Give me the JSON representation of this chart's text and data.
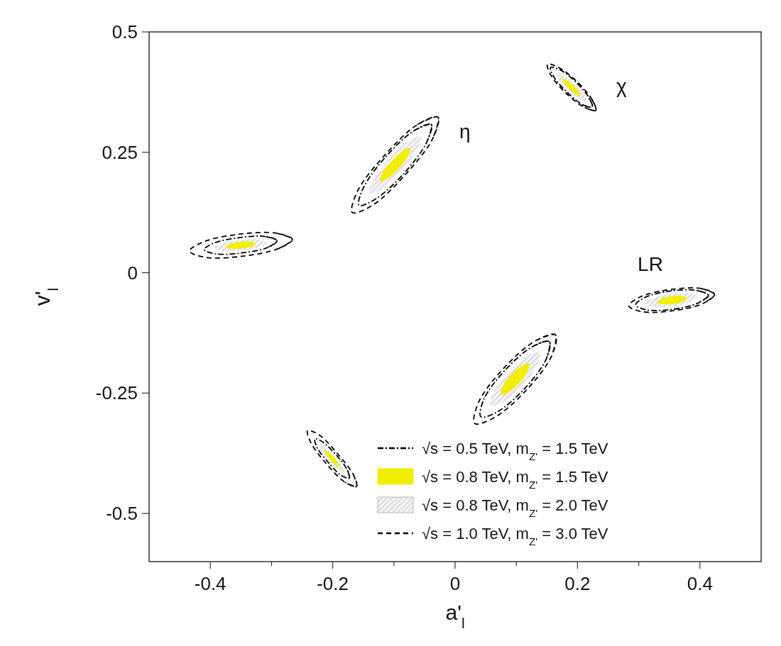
{
  "chart_data": {
    "type": "line",
    "xlabel": "a'$_{l}$",
    "ylabel": "v'$_{l}$",
    "xlim": [
      -0.5,
      0.5
    ],
    "xticks": [
      -0.4,
      {
        "value": -0.3,
        "label": null
      },
      -0.2,
      {
        "value": -0.1,
        "label": null
      },
      0,
      {
        "value": 0.1,
        "label": null
      },
      0.2,
      {
        "value": 0.3,
        "label": null
      },
      0.4
    ],
    "ylim": [
      -0.6,
      0.5
    ],
    "yticks": [
      -0.5,
      -0.25,
      0,
      0.25,
      0.5
    ],
    "grid": false,
    "legend": "bottom right",
    "marker": "none",
    "annotations": [
      "χ",
      "η",
      "LR"
    ],
    "series": [
      {
        "name": "√s = 0.5 TeV, m$_{Z'}$ = 1.5 TeV",
        "type": "line",
        "line_style": "dashdot",
        "color": "#000000",
        "x": [
          0.224,
          0.208,
          0.183,
          0.161,
          0.156,
          0.172,
          0.198,
          0.219,
          null,
          -0.039,
          -0.046,
          -0.083,
          -0.13,
          -0.157,
          -0.15,
          -0.113,
          -0.067,
          null,
          -0.291,
          -0.307,
          -0.349,
          -0.391,
          -0.41,
          -0.393,
          -0.351,
          -0.309,
          null,
          0.414,
          0.397,
          0.356,
          0.313,
          0.295,
          0.311,
          0.352,
          0.395,
          null,
          0.154,
          0.149,
          0.114,
          0.069,
          0.042,
          0.047,
          0.082,
          0.127,
          null,
          -0.173,
          -0.186,
          -0.208,
          -0.226,
          -0.229,
          -0.216,
          -0.194,
          -0.176
        ],
        "values": [
          0.344,
          0.349,
          0.375,
          0.407,
          0.426,
          0.421,
          0.395,
          0.363,
          null,
          0.308,
          0.272,
          0.207,
          0.153,
          0.14,
          0.176,
          0.241,
          0.295,
          null,
          0.066,
          0.052,
          0.041,
          0.039,
          0.048,
          0.062,
          0.073,
          0.075,
          null,
          -0.047,
          -0.063,
          -0.076,
          -0.077,
          -0.067,
          -0.051,
          -0.038,
          -0.037,
          null,
          -0.143,
          -0.179,
          -0.24,
          -0.289,
          -0.299,
          -0.263,
          -0.202,
          -0.153,
          null,
          -0.427,
          -0.421,
          -0.393,
          -0.362,
          -0.345,
          -0.352,
          -0.379,
          -0.41
        ]
      },
      {
        "name": "√s = 0.8 TeV, m$_{Z'}$ = 1.5 TeV",
        "type": "area",
        "color": "#f2ee00",
        "x": [
          0.204,
          0.198,
          0.187,
          0.178,
          0.176,
          0.182,
          0.193,
          0.202,
          null,
          -0.074,
          -0.076,
          -0.092,
          -0.111,
          -0.122,
          -0.12,
          -0.104,
          -0.085,
          null,
          -0.326,
          -0.332,
          -0.349,
          -0.367,
          -0.375,
          -0.368,
          -0.351,
          -0.333,
          null,
          0.379,
          0.372,
          0.355,
          0.337,
          0.33,
          0.336,
          0.353,
          0.371,
          null,
          0.121,
          0.119,
          0.105,
          0.086,
          0.075,
          0.077,
          0.091,
          0.11,
          null,
          -0.189,
          -0.195,
          -0.204,
          -0.211,
          -0.213,
          -0.207,
          -0.198,
          -0.191
        ],
        "values": [
          0.368,
          0.37,
          0.381,
          0.394,
          0.402,
          0.4,
          0.389,
          0.376,
          null,
          0.259,
          0.244,
          0.217,
          0.195,
          0.189,
          0.204,
          0.231,
          0.253,
          null,
          0.061,
          0.055,
          0.05,
          0.05,
          0.053,
          0.059,
          0.064,
          0.064,
          null,
          -0.053,
          -0.06,
          -0.065,
          -0.065,
          -0.061,
          -0.055,
          -0.049,
          -0.049,
          null,
          -0.189,
          -0.204,
          -0.229,
          -0.249,
          -0.253,
          -0.238,
          -0.213,
          -0.193,
          null,
          -0.403,
          -0.4,
          -0.389,
          -0.376,
          -0.369,
          -0.372,
          -0.383,
          -0.396
        ]
      },
      {
        "name": "√s = 0.8 TeV, m$_{Z'}$ = 2.0 TeV",
        "type": "area",
        "color": "#b8b8b8",
        "x": [
          0.214,
          0.203,
          0.185,
          0.17,
          0.166,
          0.177,
          0.195,
          0.211,
          null,
          -0.056,
          -0.061,
          -0.088,
          -0.12,
          -0.14,
          -0.135,
          -0.108,
          -0.076,
          null,
          -0.308,
          -0.32,
          -0.349,
          -0.379,
          -0.392,
          -0.38,
          -0.351,
          -0.321,
          null,
          0.396,
          0.385,
          0.355,
          0.325,
          0.312,
          0.323,
          0.353,
          0.383,
          null,
          0.138,
          0.134,
          0.109,
          0.078,
          0.058,
          0.062,
          0.087,
          0.118,
          null,
          -0.181,
          -0.19,
          -0.206,
          -0.218,
          -0.221,
          -0.212,
          -0.196,
          -0.184
        ],
        "values": [
          0.356,
          0.36,
          0.378,
          0.4,
          0.414,
          0.41,
          0.392,
          0.37,
          null,
          0.283,
          0.258,
          0.212,
          0.174,
          0.165,
          0.19,
          0.236,
          0.274,
          null,
          0.063,
          0.053,
          0.046,
          0.045,
          0.051,
          0.061,
          0.068,
          0.069,
          null,
          -0.05,
          -0.061,
          -0.07,
          -0.071,
          -0.064,
          -0.053,
          -0.044,
          -0.043,
          null,
          -0.166,
          -0.192,
          -0.234,
          -0.269,
          -0.276,
          -0.25,
          -0.208,
          -0.173,
          null,
          -0.415,
          -0.41,
          -0.391,
          -0.369,
          -0.357,
          -0.362,
          -0.381,
          -0.403
        ]
      },
      {
        "name": "√s = 1.0 TeV, m$_{Z'}$ = 3.0 TeV",
        "type": "line",
        "line_style": "dashed",
        "color": "#000000",
        "x": [
          0.23,
          0.212,
          0.181,
          0.156,
          0.151,
          0.168,
          0.199,
          0.224,
          null,
          -0.028,
          -0.036,
          -0.081,
          -0.135,
          -0.168,
          -0.16,
          -0.115,
          -0.061,
          null,
          -0.266,
          -0.289,
          -0.348,
          -0.408,
          -0.434,
          -0.411,
          -0.352,
          -0.292,
          null,
          0.424,
          0.405,
          0.356,
          0.306,
          0.284,
          0.303,
          0.352,
          0.402,
          null,
          0.164,
          0.158,
          0.117,
          0.064,
          0.032,
          0.038,
          0.079,
          0.132,
          null,
          -0.161,
          -0.18,
          -0.211,
          -0.236,
          -0.241,
          -0.222,
          -0.192,
          -0.166
        ],
        "values": [
          0.337,
          0.343,
          0.373,
          0.411,
          0.433,
          0.427,
          0.397,
          0.359,
          null,
          0.323,
          0.28,
          0.204,
          0.14,
          0.125,
          0.168,
          0.244,
          0.308,
          null,
          0.069,
          0.05,
          0.034,
          0.032,
          0.045,
          0.064,
          0.08,
          0.082,
          null,
          -0.045,
          -0.064,
          -0.079,
          -0.081,
          -0.069,
          -0.05,
          -0.035,
          -0.033,
          null,
          -0.129,
          -0.172,
          -0.243,
          -0.301,
          -0.313,
          -0.27,
          -0.199,
          -0.141,
          null,
          -0.444,
          -0.435,
          -0.396,
          -0.352,
          -0.328,
          -0.337,
          -0.376,
          -0.42
        ]
      }
    ]
  }
}
